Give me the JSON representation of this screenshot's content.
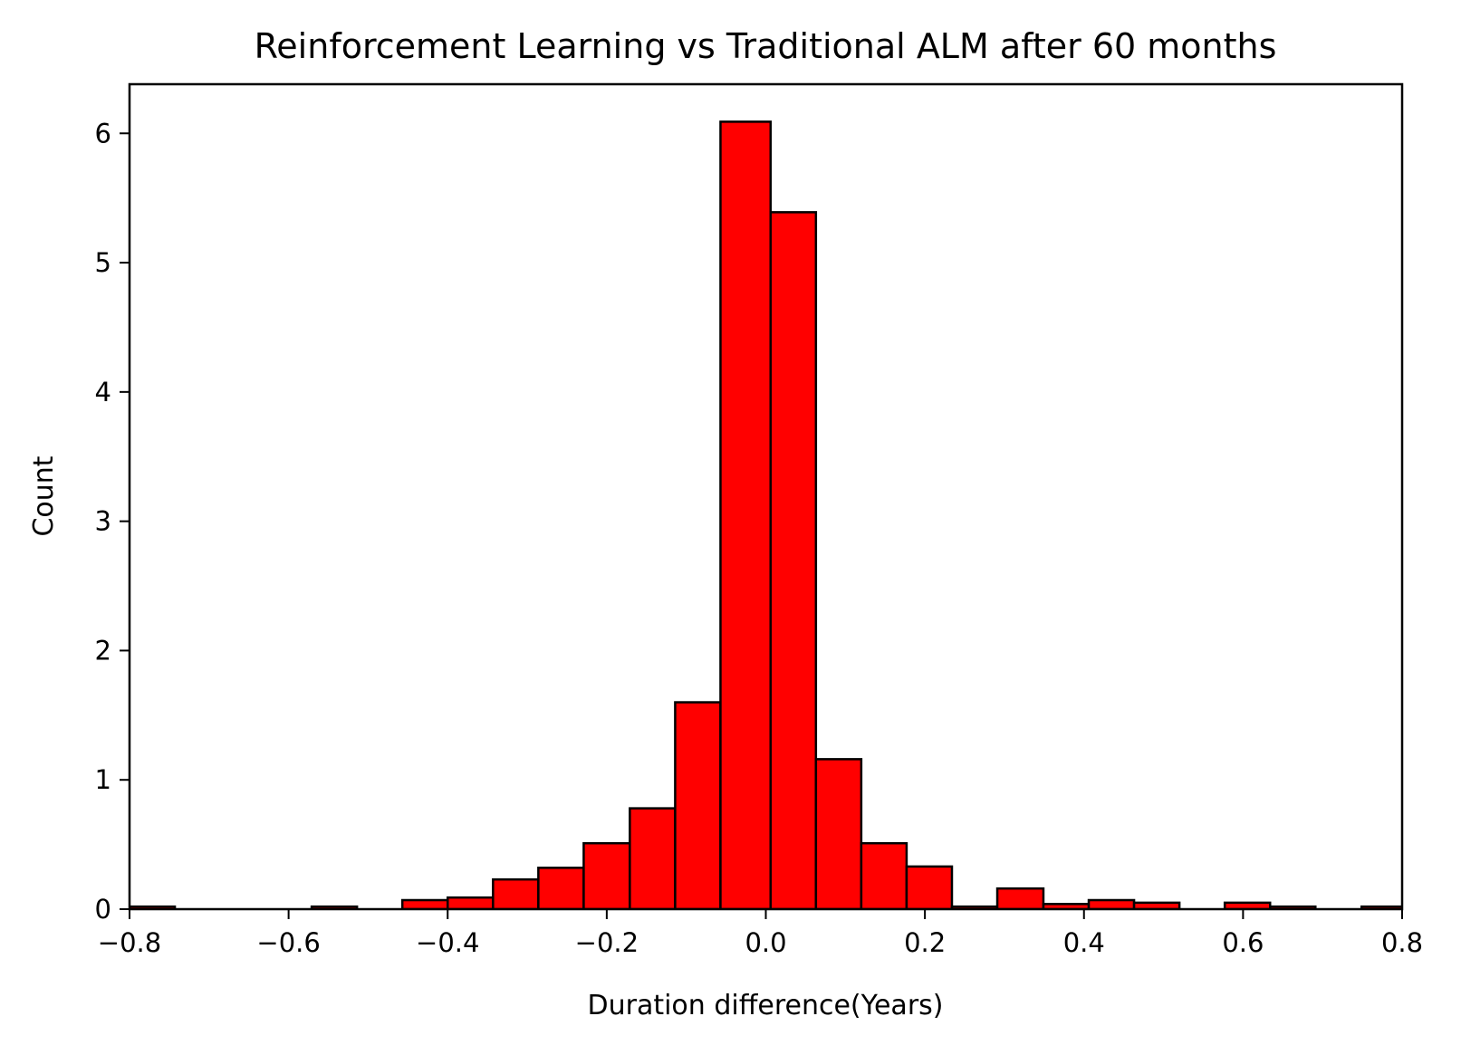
{
  "chart_data": {
    "type": "bar",
    "title": "Reinforcement Learning vs Traditional ALM after 60 months",
    "xlabel": "Duration difference(Years)",
    "ylabel": "Count",
    "xlim": [
      -0.8,
      0.8
    ],
    "ylim": [
      0,
      6.38
    ],
    "grid": false,
    "bar_color": "#ff0000",
    "edge_color": "#000000",
    "x_ticks": [
      {
        "value": -0.8,
        "label": "−0.8"
      },
      {
        "value": -0.6,
        "label": "−0.6"
      },
      {
        "value": -0.4,
        "label": "−0.4"
      },
      {
        "value": -0.2,
        "label": "−0.2"
      },
      {
        "value": 0.0,
        "label": "0.0"
      },
      {
        "value": 0.2,
        "label": "0.2"
      },
      {
        "value": 0.4,
        "label": "0.4"
      },
      {
        "value": 0.6,
        "label": "0.6"
      },
      {
        "value": 0.8,
        "label": "0.8"
      }
    ],
    "y_ticks": [
      {
        "value": 0,
        "label": "0"
      },
      {
        "value": 1,
        "label": "1"
      },
      {
        "value": 2,
        "label": "2"
      },
      {
        "value": 3,
        "label": "3"
      },
      {
        "value": 4,
        "label": "4"
      },
      {
        "value": 5,
        "label": "5"
      },
      {
        "value": 6,
        "label": "6"
      }
    ],
    "bins": [
      {
        "x0": -0.8,
        "x1": -0.743,
        "count": 0.02
      },
      {
        "x0": -0.743,
        "x1": -0.686,
        "count": 0.0
      },
      {
        "x0": -0.686,
        "x1": -0.629,
        "count": 0.0
      },
      {
        "x0": -0.629,
        "x1": -0.571,
        "count": 0.0
      },
      {
        "x0": -0.571,
        "x1": -0.514,
        "count": 0.02
      },
      {
        "x0": -0.514,
        "x1": -0.457,
        "count": 0.0
      },
      {
        "x0": -0.457,
        "x1": -0.4,
        "count": 0.07
      },
      {
        "x0": -0.4,
        "x1": -0.343,
        "count": 0.09
      },
      {
        "x0": -0.343,
        "x1": -0.286,
        "count": 0.23
      },
      {
        "x0": -0.286,
        "x1": -0.229,
        "count": 0.32
      },
      {
        "x0": -0.229,
        "x1": -0.171,
        "count": 0.51
      },
      {
        "x0": -0.171,
        "x1": -0.114,
        "count": 0.78
      },
      {
        "x0": -0.114,
        "x1": -0.057,
        "count": 1.6
      },
      {
        "x0": -0.057,
        "x1": 0.006,
        "count": 6.09
      },
      {
        "x0": 0.006,
        "x1": 0.063,
        "count": 5.39
      },
      {
        "x0": 0.063,
        "x1": 0.12,
        "count": 1.16
      },
      {
        "x0": 0.12,
        "x1": 0.177,
        "count": 0.51
      },
      {
        "x0": 0.177,
        "x1": 0.234,
        "count": 0.33
      },
      {
        "x0": 0.234,
        "x1": 0.291,
        "count": 0.02
      },
      {
        "x0": 0.291,
        "x1": 0.349,
        "count": 0.16
      },
      {
        "x0": 0.349,
        "x1": 0.406,
        "count": 0.04
      },
      {
        "x0": 0.406,
        "x1": 0.463,
        "count": 0.07
      },
      {
        "x0": 0.463,
        "x1": 0.52,
        "count": 0.05
      },
      {
        "x0": 0.52,
        "x1": 0.577,
        "count": 0.0
      },
      {
        "x0": 0.577,
        "x1": 0.634,
        "count": 0.05
      },
      {
        "x0": 0.634,
        "x1": 0.691,
        "count": 0.02
      },
      {
        "x0": 0.691,
        "x1": 0.749,
        "count": 0.0
      },
      {
        "x0": 0.749,
        "x1": 0.806,
        "count": 0.02
      }
    ]
  }
}
